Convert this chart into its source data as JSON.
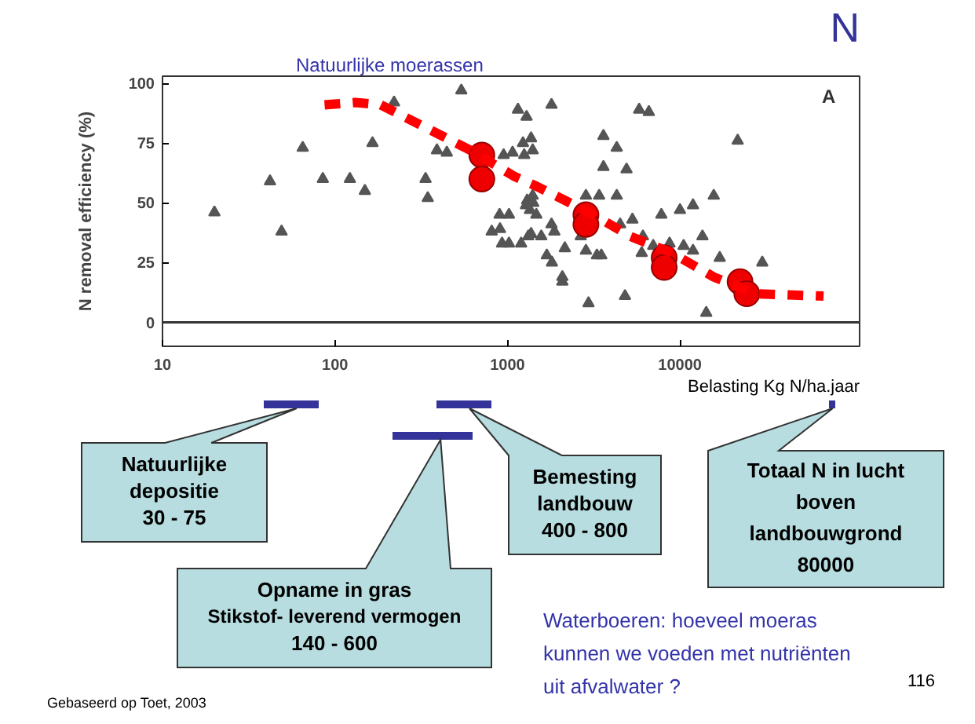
{
  "chart_data": [
    {
      "type": "scatter",
      "title": "N",
      "ylabel": "N removal efficiency (%)",
      "xlabel": "Belasting Kg N/ha.jaar",
      "log": "x",
      "xlim": [
        10,
        110000
      ],
      "xticks": [
        10,
        100,
        1000,
        10000
      ],
      "ylim": [
        -10,
        103
      ],
      "yticks": [
        0,
        25,
        50,
        75,
        100
      ],
      "grid": false,
      "series": [
        {
          "marker": "triangle",
          "color": "#555555",
          "x": [
            20,
            42,
            49,
            65,
            85,
            122,
            149,
            165,
            220,
            335,
            345,
            390,
            445,
            540,
            905,
            1020,
            1020,
            1320,
            1370,
            1290,
            1370,
            1400,
            1070,
            1410,
            1150,
            1800,
            5800,
            6600,
            1230,
            1250,
            3600,
            4300,
            3600,
            4900,
            21600,
            950,
            1300,
            1280,
            1400,
            1350,
            1470,
            900,
            810,
            1200,
            930,
            1570,
            1800,
            1870,
            2150,
            1690,
            1810,
            2080,
            2080,
            2850,
            3400,
            4300,
            2660,
            3500,
            3300,
            2850,
            4500,
            5300,
            6100,
            6000,
            7000,
            7800,
            10000,
            11900,
            15700,
            13500,
            8700,
            10500,
            11900,
            17000,
            30000,
            4800,
            2950,
            14200
          ],
          "values": [
            46,
            59,
            38,
            73,
            60,
            60,
            55,
            75,
            92,
            60,
            52,
            72,
            71,
            97,
            39,
            45,
            33,
            36,
            37,
            86,
            77,
            72,
            71,
            50,
            89,
            91,
            89,
            88,
            75,
            70,
            78,
            73,
            65,
            64,
            76,
            70,
            51,
            49,
            53,
            47,
            45,
            45,
            38,
            33,
            33,
            36,
            41,
            38,
            31,
            28,
            25,
            19,
            17,
            53,
            53,
            53,
            36,
            28,
            28,
            30,
            41,
            43,
            36,
            29,
            32,
            45,
            47,
            49,
            53,
            36,
            33,
            32,
            30,
            27,
            25,
            11,
            8,
            4
          ]
        },
        {
          "marker": "circle",
          "color": "#ee0000",
          "x": [
            710,
            710,
            2850,
            2850,
            8100,
            8100,
            22300,
            24400
          ],
          "values": [
            70,
            60,
            45,
            41,
            27,
            23,
            17,
            12
          ]
        },
        {
          "type": "line",
          "line_style": "dashed",
          "color": "#ff0000",
          "x": [
            87,
            131,
            184,
            325,
            610,
            1100,
            1470,
            3160,
            5150,
            9000,
            15700,
            27500,
            68000
          ],
          "values": [
            91,
            92,
            91,
            82,
            72,
            61,
            57,
            45,
            36,
            29,
            19,
            12,
            11
          ]
        }
      ],
      "ref_lines": [
        {
          "axis": "y",
          "value": 0,
          "color": "#333333"
        }
      ],
      "annotations": [
        "Natuurlijke moerassen",
        "A"
      ]
    },
    {
      "type": "other",
      "annotations": [
        "Natuurlijke\ndepositie\n30 - 75",
        "Opname in gras\nStikstof- leverend vermogen\n140 - 600",
        "Bemesting\nlandbouw\n400 - 800",
        "Totaal N in  lucht\nboven\nlandbouwgrond\n80000",
        "Waterboeren: hoeveel moeras\nkunnen we voeden met nutriënten\nuit afvalwater ?",
        "116",
        "Gebaseerd op Toet, 2003"
      ]
    }
  ]
}
